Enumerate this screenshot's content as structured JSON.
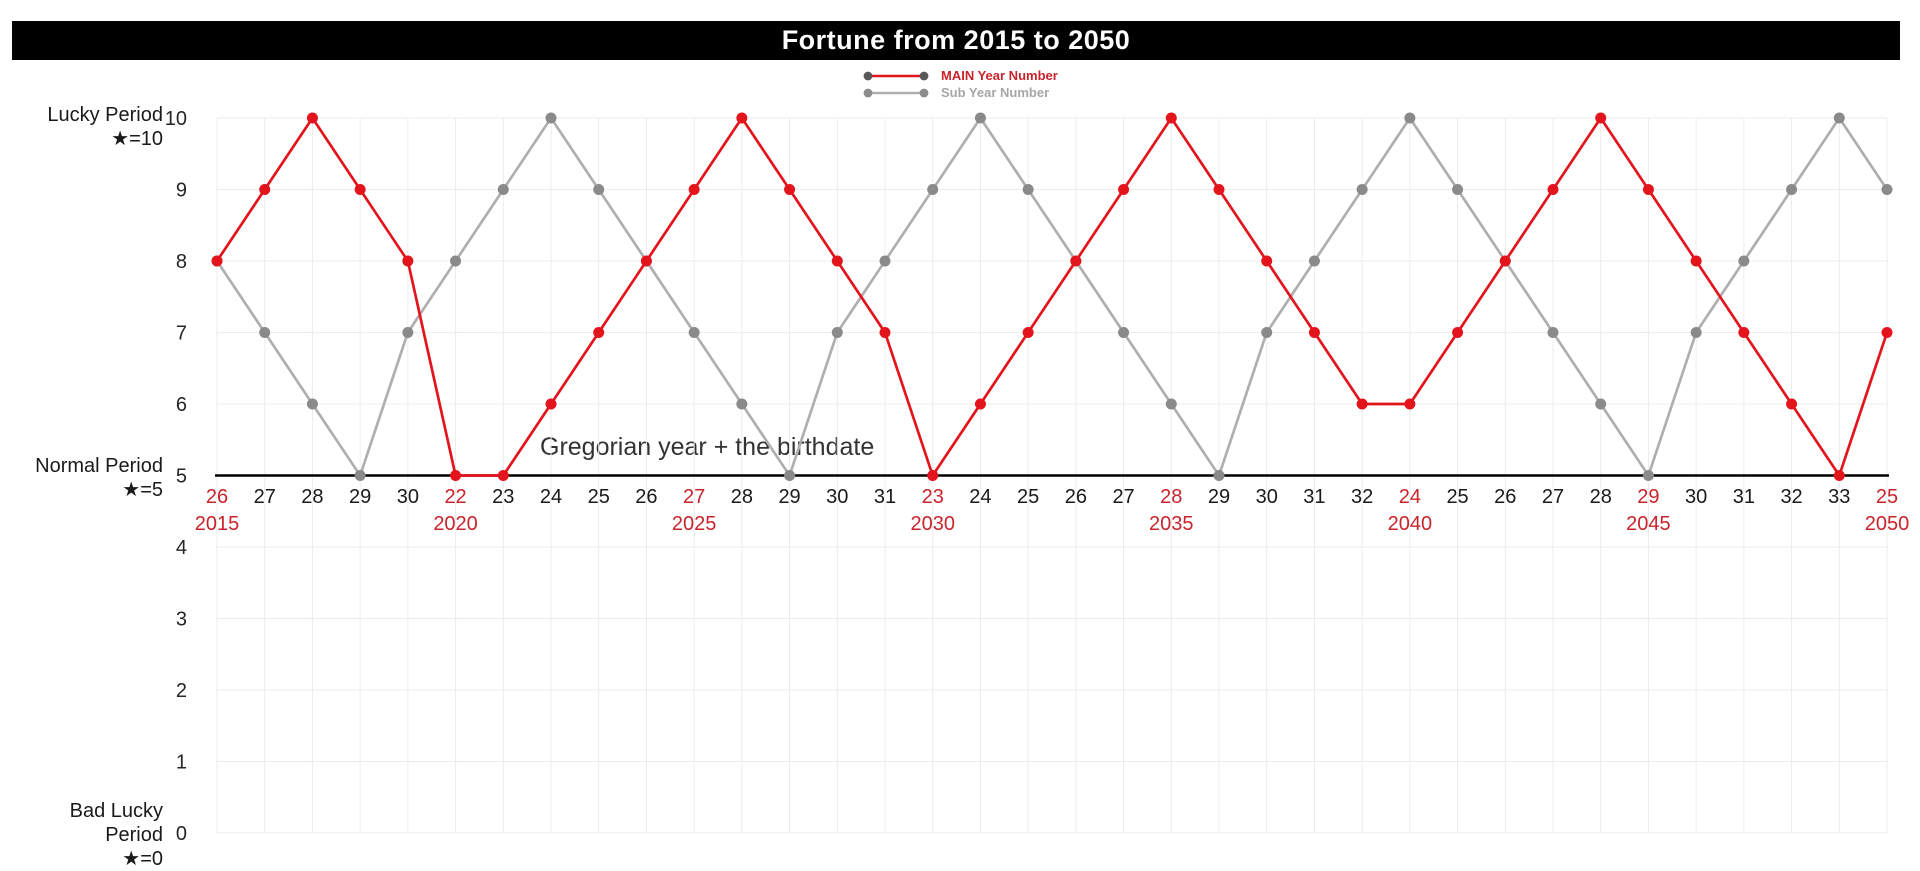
{
  "title": "Fortune from 2015 to 2050",
  "annotation": "Gregorian year + the birthdate",
  "y_axis_annotations": {
    "lucky": {
      "line1": "Lucky Period",
      "line2": "★=10"
    },
    "normal": {
      "line1": "Normal Period",
      "line2": "★=5"
    },
    "bad": {
      "line1": "Bad Lucky Period",
      "line2": "★=0"
    }
  },
  "colors": {
    "label_red": "#C9242B",
    "tick_text": "#262626",
    "x_label_text": "#1a1a1a",
    "gridline": "#ececec",
    "baseline": "#000000"
  },
  "chart_data": {
    "type": "line",
    "title": "Fortune from 2015 to 2050",
    "xlabel": "",
    "ylabel": "",
    "ylim": [
      0,
      10
    ],
    "yticks": [
      0,
      1,
      2,
      3,
      4,
      5,
      6,
      7,
      8,
      9,
      10
    ],
    "baseline_value": 5,
    "grid": true,
    "legend_position": "top",
    "categories": [
      "26",
      "27",
      "28",
      "29",
      "30",
      "22",
      "23",
      "24",
      "25",
      "26",
      "27",
      "28",
      "29",
      "30",
      "31",
      "23",
      "24",
      "25",
      "26",
      "27",
      "28",
      "29",
      "30",
      "31",
      "32",
      "24",
      "25",
      "26",
      "27",
      "28",
      "29",
      "30",
      "31",
      "32",
      "33",
      "25"
    ],
    "year_markers": [
      {
        "index": 0,
        "year": "2015"
      },
      {
        "index": 5,
        "year": "2020"
      },
      {
        "index": 10,
        "year": "2025"
      },
      {
        "index": 15,
        "year": "2030"
      },
      {
        "index": 20,
        "year": "2035"
      },
      {
        "index": 25,
        "year": "2040"
      },
      {
        "index": 30,
        "year": "2045"
      },
      {
        "index": 35,
        "year": "2050"
      }
    ],
    "series": [
      {
        "name": "MAIN Year Number",
        "color": "#E3141C",
        "marker_color": "#E3141C",
        "legend_dot_color": "#595959",
        "legend_text_color": "#C9242B",
        "values": [
          8,
          9,
          10,
          9,
          8,
          5,
          5,
          6,
          7,
          8,
          9,
          10,
          9,
          8,
          7,
          5,
          6,
          7,
          8,
          9,
          10,
          9,
          8,
          7,
          6,
          6,
          7,
          8,
          9,
          10,
          9,
          8,
          7,
          6,
          5,
          7
        ]
      },
      {
        "name": "Sub Year Number",
        "color": "#AFAFAF",
        "marker_color": "#8A8A8A",
        "legend_dot_color": "#8C8C8C",
        "legend_text_color": "#A6A6A6",
        "values": [
          8,
          7,
          6,
          5,
          7,
          8,
          9,
          10,
          9,
          8,
          7,
          6,
          5,
          7,
          8,
          9,
          10,
          9,
          8,
          7,
          6,
          5,
          7,
          8,
          9,
          10,
          9,
          8,
          7,
          6,
          5,
          7,
          8,
          9,
          10,
          9
        ]
      }
    ]
  }
}
